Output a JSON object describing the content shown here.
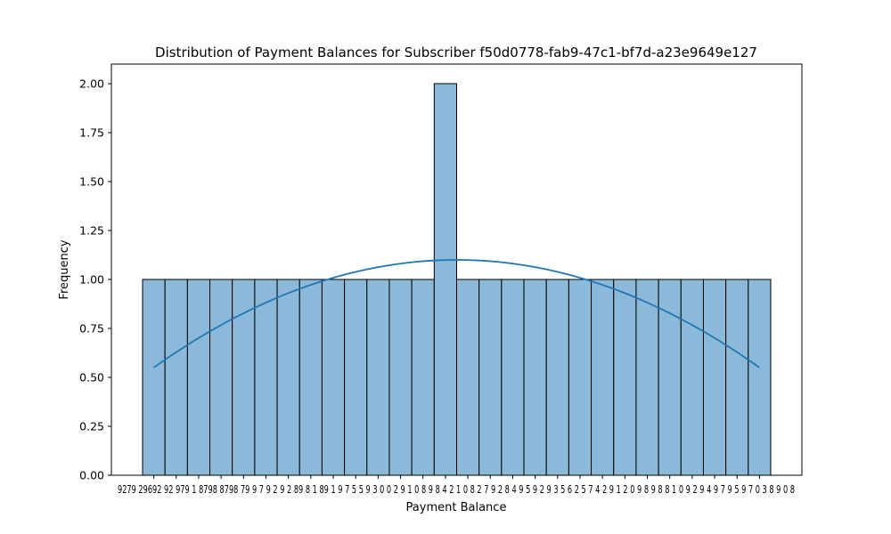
{
  "chart_data": {
    "type": "bar",
    "title": "Distribution of Payment Balances for Subscriber f50d0778-fab9-47c1-bf7d-a23e9649e127",
    "xlabel": "Payment Balance",
    "ylabel": "Frequency",
    "ylim": [
      0,
      2.1
    ],
    "yticks": [
      "0.00",
      "0.25",
      "0.50",
      "0.75",
      "1.00",
      "1.25",
      "1.50",
      "1.75",
      "2.00"
    ],
    "xtick_text": "9279 29692 92 979 1 8798 8798 79 9 7 9 2 9 2 89 8 1 89 1 9 7 5 5 9 3 0 0 2 9 1 0 8 9 8 4 2 1 0 8 2 7 9 2 8 4 9 5 9 2 9 3 5 6 2 5 7 4 2 9 1 2 0 9 8 9 8 8 1 0 9 2 9 4 9 7 9 5 9 7 0 3 8 9 0 8",
    "counts": [
      1,
      1,
      1,
      1,
      1,
      1,
      1,
      1,
      1,
      1,
      1,
      1,
      1,
      2,
      1,
      1,
      1,
      1,
      1,
      1,
      1,
      1,
      1,
      1,
      1,
      1,
      1,
      1
    ],
    "kde": {
      "start": 0.55,
      "peak": 1.1,
      "end": 0.55
    },
    "colors": {
      "bar_fill": "#8cb9d9",
      "bar_edge": "#000000",
      "kde_line": "#1f77b4"
    }
  }
}
